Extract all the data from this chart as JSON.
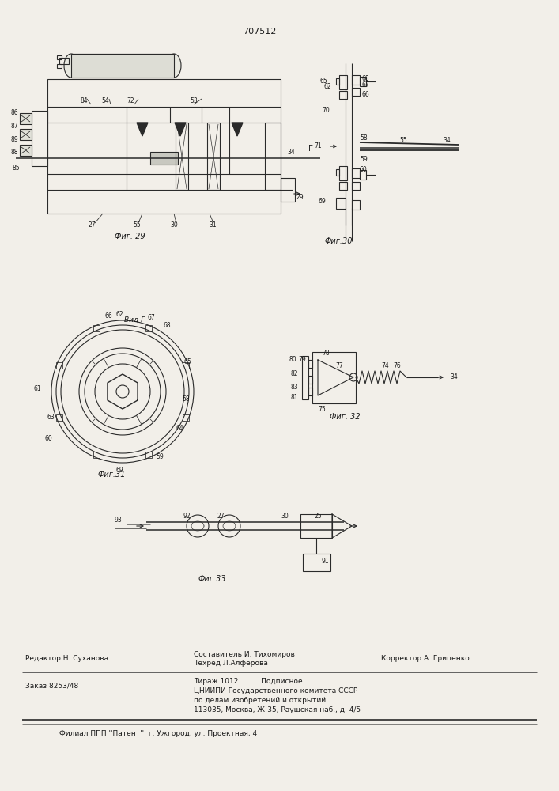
{
  "patent_number": "707512",
  "bg_color": "#f2efe9",
  "line_color": "#2a2a2a",
  "text_color": "#1a1a1a",
  "footer_line1_left": "Редактор Н. Суханова",
  "footer_line1_center_top": "Составитель И. Тихомиров",
  "footer_line1_center_bot": "Техред Л.Алферова",
  "footer_line1_right": "Корректор А. Гриценко",
  "footer_line2_left": "Заказ 8253/48",
  "footer_line2_c1": "Тираж 1012",
  "footer_line2_c2": "Подписное",
  "footer_line2_c3": "ЦНИИПИ Государственного комитета СССР",
  "footer_line2_c4": "по делам изобретений и открытий",
  "footer_line2_c5": "113035, Москва, Ж-35, Раушская наб., д. 4/5",
  "footer_line3": "Филиал ППП ''Патент'', г. Ужгород, ул. Проектная, 4",
  "fig29_caption": "Фиг. 29",
  "fig30_caption": "Фиг.30",
  "fig31_caption": "Фиг.31",
  "fig32_caption": "Фиг. 32",
  "fig33_caption": "Фиг.33"
}
